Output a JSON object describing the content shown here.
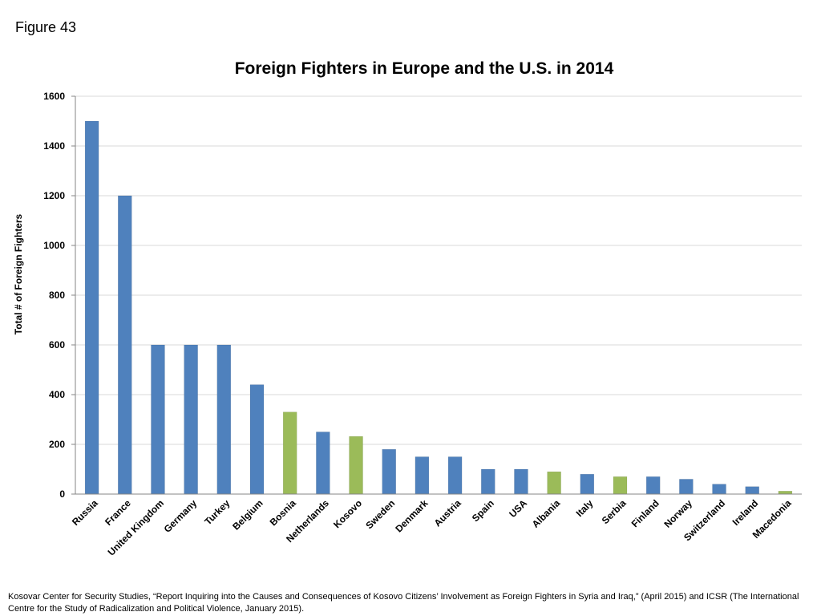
{
  "figure_label": "Figure 43",
  "source_note": "Kosovar Center for Security Studies, “Report Inquiring into the Causes and Consequences of Kosovo Citizens’ Involvement as Foreign Fighters in Syria and Iraq,” (April 2015) and ICSR (The International Centre for the Study of Radicalization and Political Violence, January 2015).",
  "colors": {
    "blue": "#4f81bd",
    "green": "#9bbb59",
    "grid": "#d9d9d9",
    "axis": "#868686"
  },
  "chart_data": {
    "type": "bar",
    "title": "Foreign Fighters in Europe and the U.S. in 2014",
    "xlabel": "",
    "ylabel": "Total # of Foreign Fighters",
    "ylim": [
      0,
      1600
    ],
    "yticks": [
      0,
      200,
      400,
      600,
      800,
      1000,
      1200,
      1400,
      1600
    ],
    "grid": true,
    "categories": [
      "Russia",
      "France",
      "United Kingdom",
      "Germany",
      "Turkey",
      "Belgium",
      "Bosnia",
      "Netherlands",
      "Kosovo",
      "Sweden",
      "Denmark",
      "Austria",
      "Spain",
      "USA",
      "Albania",
      "Italy",
      "Serbia",
      "Finland",
      "Norway",
      "Switzerland",
      "Ireland",
      "Macedonia"
    ],
    "values": [
      1500,
      1200,
      600,
      600,
      600,
      440,
      330,
      250,
      232,
      180,
      150,
      150,
      100,
      100,
      90,
      80,
      70,
      70,
      60,
      40,
      30,
      12
    ],
    "bar_colors": [
      "blue",
      "blue",
      "blue",
      "blue",
      "blue",
      "blue",
      "green",
      "blue",
      "green",
      "blue",
      "blue",
      "blue",
      "blue",
      "blue",
      "green",
      "blue",
      "green",
      "blue",
      "blue",
      "blue",
      "blue",
      "green"
    ]
  }
}
